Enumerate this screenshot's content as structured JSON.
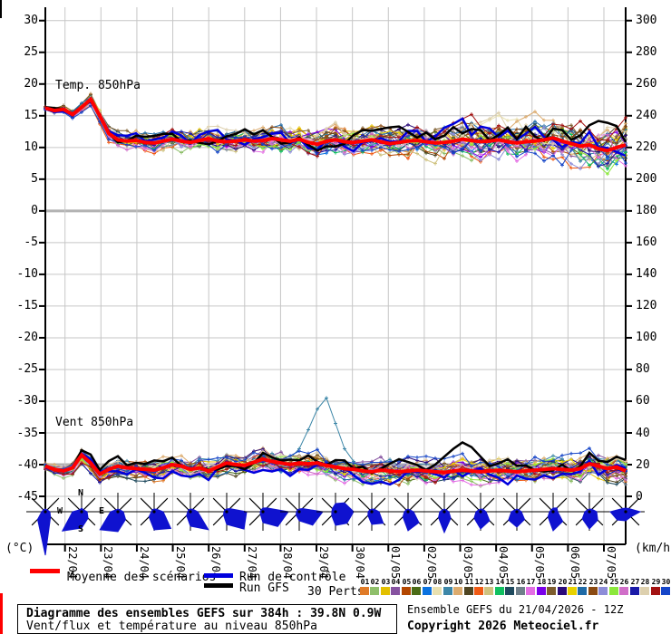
{
  "axes": {
    "left_unit": "(°C)",
    "right_unit": "(km/h)",
    "left_ticks": [
      30,
      25,
      20,
      15,
      10,
      5,
      0,
      -5,
      -10,
      -15,
      -20,
      -25,
      -30,
      -35,
      -40,
      -45
    ],
    "right_ticks": [
      300,
      280,
      260,
      240,
      220,
      200,
      180,
      160,
      140,
      120,
      100,
      80,
      60,
      40,
      20,
      0
    ],
    "x_labels": [
      "22/04",
      "23/04",
      "24/04",
      "25/04",
      "26/04",
      "27/04",
      "28/04",
      "29/04",
      "30/04",
      "01/05",
      "02/05",
      "03/05",
      "04/05",
      "05/05",
      "06/05",
      "07/05"
    ]
  },
  "compass": {
    "n": "N",
    "e": "E",
    "s": "S",
    "w": "W"
  },
  "legend": {
    "mean": {
      "label": "Moyenne des scénarios",
      "color": "#ff0000"
    },
    "control": {
      "label": "Run de contrôle",
      "color": "#0000dd"
    },
    "gfs": {
      "label": "Run GFS",
      "color": "#000000"
    },
    "perts_label": "30 Perts.",
    "pert_numbers": [
      "01",
      "02",
      "03",
      "04",
      "05",
      "06",
      "07",
      "08",
      "09",
      "10",
      "11",
      "12",
      "13",
      "14",
      "15",
      "16",
      "17",
      "18",
      "19",
      "20",
      "21",
      "22",
      "23",
      "24",
      "25",
      "26",
      "27",
      "28",
      "29",
      "30"
    ],
    "pert_colors": [
      "#e07b28",
      "#8fbf6b",
      "#e3c000",
      "#8652a0",
      "#b34700",
      "#4a6b16",
      "#0b72e0",
      "#e8e0b0",
      "#3d87a8",
      "#dcab6e",
      "#4f4522",
      "#f05a14",
      "#cfc27f",
      "#10c060",
      "#1f4a5e",
      "#6f7f8a",
      "#e46ee4",
      "#7a00e8",
      "#7d5d2e",
      "#2a0a7a",
      "#e8d200",
      "#1f6aa6",
      "#8a4a12",
      "#8d8dd8",
      "#8ce83c",
      "#d06ec8",
      "#1a1aa8",
      "#ddd0ae",
      "#a31212",
      "#1545c8"
    ]
  },
  "footer": {
    "title": "Diagramme des ensembles GEFS sur 384h : 39.8N 0.9W",
    "subtitle": "Vent/flux et température au niveau 850hPa",
    "run_info": "Ensemble GEFS du 21/04/2026 - 12Z",
    "copyright": "Copyright 2026 Meteociel.fr"
  },
  "chart_data": {
    "type": "line",
    "title": "Diagramme des ensembles GEFS sur 384h : 39.8N 0.9W",
    "x_hours_step": 6,
    "x_total_hours": 384,
    "x_tick_labels": [
      "22/04",
      "23/04",
      "24/04",
      "25/04",
      "26/04",
      "27/04",
      "28/04",
      "29/04",
      "30/04",
      "01/05",
      "02/05",
      "03/05",
      "04/05",
      "05/05",
      "06/05",
      "07/05"
    ],
    "legend_position": "bottom",
    "grid": true,
    "temp": {
      "label": "Temp. 850hPa",
      "ylabel": "°C",
      "ylim": [
        -45,
        30
      ],
      "mean": [
        16.2,
        15.8,
        16.0,
        15.2,
        16.3,
        17.6,
        15.0,
        12.2,
        11.2,
        11.0,
        11.1,
        10.8,
        10.7,
        11.0,
        11.3,
        11.0,
        10.8,
        11.1,
        11.4,
        11.0,
        10.9,
        11.0,
        11.2,
        11.0,
        11.1,
        11.4,
        11.2,
        11.0,
        11.3,
        10.8,
        10.5,
        11.0,
        11.2,
        10.9,
        10.8,
        11.0,
        11.2,
        10.9,
        10.6,
        10.8,
        11.0,
        11.1,
        10.9,
        10.7,
        10.8,
        11.0,
        11.3,
        11.1,
        10.9,
        11.0,
        11.2,
        10.9,
        10.7,
        10.9,
        11.0,
        11.2,
        11.5,
        11.0,
        10.6,
        10.2,
        10.4,
        9.8,
        9.5,
        10.0,
        10.4
      ],
      "spread_keypoints": [
        [
          0,
          0.3
        ],
        [
          4,
          0.6
        ],
        [
          8,
          1.1
        ],
        [
          16,
          1.5
        ],
        [
          32,
          1.9
        ],
        [
          48,
          2.6
        ],
        [
          64,
          3.3
        ]
      ]
    },
    "wind": {
      "label": "Vent 850hPa",
      "ylabel": "km/h",
      "ylim": [
        0,
        300
      ],
      "km_h_per_5C": 20,
      "mean": [
        19,
        17,
        16,
        18,
        26,
        21,
        14,
        17,
        19,
        18,
        17.5,
        17,
        16.5,
        18,
        20,
        19,
        17,
        18,
        16,
        18.5,
        21,
        20,
        19.5,
        21.5,
        23.5,
        22,
        21,
        20,
        21,
        20.5,
        21,
        19.5,
        18.5,
        17.5,
        17,
        16,
        15.5,
        16.5,
        16,
        15.5,
        16,
        16.5,
        16,
        15.5,
        15,
        16,
        16.5,
        16,
        15.5,
        16,
        16.5,
        16,
        15.5,
        16,
        16.5,
        17,
        17.5,
        17,
        16.5,
        17.5,
        20.5,
        19,
        17.5,
        18.5,
        16
      ],
      "spread_keypoints": [
        [
          0,
          2
        ],
        [
          4,
          4
        ],
        [
          8,
          5
        ],
        [
          24,
          6
        ],
        [
          40,
          6.5
        ],
        [
          64,
          7.5
        ]
      ]
    },
    "overrides": [
      {
        "series": "member",
        "index": 8,
        "target": "wind",
        "start": 27,
        "values": [
          24,
          30,
          42,
          55,
          62,
          46,
          30,
          22
        ]
      },
      {
        "series": "member",
        "index": 28,
        "target": "temp",
        "start": 36,
        "ramp_to": 3.2
      },
      {
        "series": "gfs",
        "target": "wind",
        "start": 43,
        "values": [
          20,
          25,
          30,
          34,
          31,
          25,
          19
        ]
      }
    ],
    "wind_roses": [
      {
        "radii": [
          3,
          3,
          5,
          8,
          48,
          12,
          4,
          3
        ]
      },
      {
        "radii": [
          4,
          3,
          6,
          10,
          18,
          30,
          10,
          3
        ],
        "compass_labels": true
      },
      {
        "radii": [
          3,
          3,
          6,
          12,
          22,
          28,
          8,
          3
        ]
      },
      {
        "radii": [
          3,
          4,
          10,
          26,
          20,
          8,
          3,
          3
        ]
      },
      {
        "radii": [
          3,
          4,
          8,
          28,
          16,
          6,
          3,
          3
        ]
      },
      {
        "radii": [
          3,
          5,
          22,
          27,
          14,
          5,
          3,
          3
        ]
      },
      {
        "radii": [
          4,
          6,
          28,
          23,
          12,
          4,
          3,
          3
        ]
      },
      {
        "radii": [
          3,
          5,
          26,
          21,
          10,
          5,
          3,
          3
        ]
      },
      {
        "radii": [
          9,
          14,
          20,
          18,
          15,
          6,
          4,
          5
        ]
      },
      {
        "radii": [
          3,
          4,
          8,
          18,
          14,
          6,
          4,
          3
        ]
      },
      {
        "radii": [
          3,
          3,
          6,
          17,
          21,
          8,
          4,
          3
        ]
      },
      {
        "radii": [
          3,
          3,
          5,
          10,
          23,
          9,
          5,
          3
        ]
      },
      {
        "radii": [
          3,
          4,
          6,
          14,
          19,
          10,
          5,
          3
        ]
      },
      {
        "radii": [
          3,
          3,
          5,
          12,
          17,
          13,
          6,
          3
        ]
      },
      {
        "radii": [
          4,
          6,
          5,
          15,
          21,
          8,
          4,
          3
        ]
      },
      {
        "radii": [
          3,
          4,
          8,
          13,
          19,
          11,
          5,
          3
        ]
      },
      {
        "radii": [
          4,
          5,
          16,
          8,
          10,
          13,
          17,
          5
        ]
      }
    ],
    "rose_color": "#0f12cf",
    "colors": {
      "grid": "#c6c6c6",
      "grid_major": "#b2b2b2",
      "axis": "#000000"
    }
  }
}
